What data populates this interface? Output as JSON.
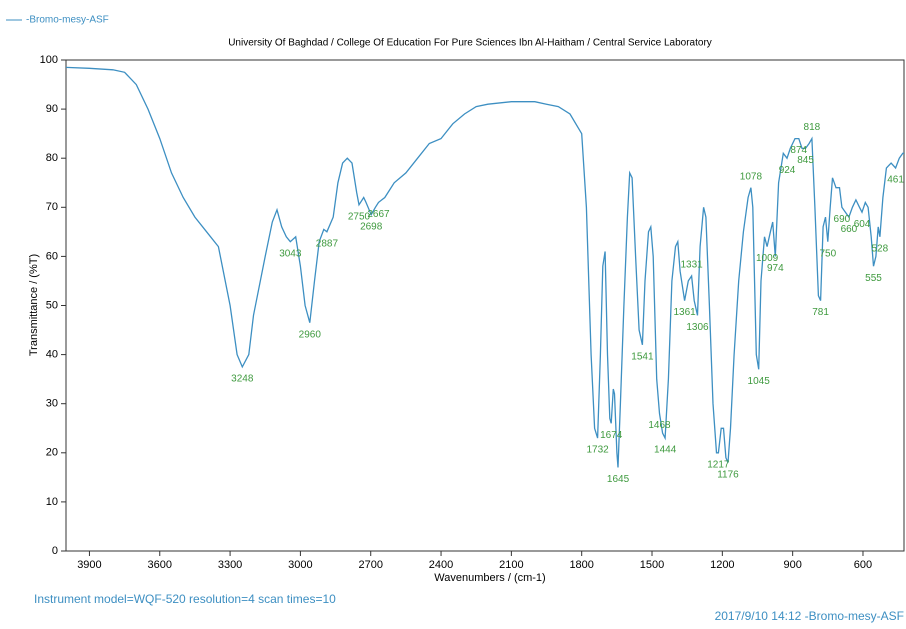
{
  "chart_data": {
    "type": "line",
    "title": "University Of Baghdad / College Of Education For Pure Sciences Ibn Al-Haitham / Central Service Laboratory",
    "xlabel": "Wavenumbers / (cm-1)",
    "ylabel": "Transmittance / (%T)",
    "footer_left": "Instrument model=WQF-520 resolution=4 scan times=10",
    "footer_right": "2017/9/10 14:12 -Bromo-mesy-ASF",
    "x": [
      4000,
      3900,
      3800,
      3750,
      3700,
      3650,
      3600,
      3550,
      3500,
      3450,
      3400,
      3350,
      3300,
      3270,
      3248,
      3220,
      3200,
      3150,
      3120,
      3100,
      3080,
      3060,
      3043,
      3020,
      3000,
      2980,
      2960,
      2940,
      2920,
      2900,
      2887,
      2860,
      2840,
      2820,
      2800,
      2780,
      2760,
      2750,
      2730,
      2720,
      2698,
      2680,
      2667,
      2640,
      2600,
      2550,
      2500,
      2450,
      2400,
      2350,
      2300,
      2250,
      2200,
      2100,
      2000,
      1950,
      1900,
      1850,
      1800,
      1780,
      1760,
      1745,
      1732,
      1720,
      1710,
      1700,
      1690,
      1680,
      1674,
      1665,
      1660,
      1650,
      1645,
      1635,
      1620,
      1605,
      1595,
      1585,
      1570,
      1555,
      1541,
      1530,
      1515,
      1505,
      1495,
      1480,
      1468,
      1455,
      1444,
      1430,
      1415,
      1400,
      1390,
      1380,
      1361,
      1345,
      1331,
      1320,
      1306,
      1295,
      1280,
      1270,
      1255,
      1240,
      1225,
      1217,
      1205,
      1195,
      1185,
      1176,
      1165,
      1150,
      1130,
      1110,
      1090,
      1078,
      1070,
      1055,
      1045,
      1035,
      1020,
      1009,
      995,
      985,
      974,
      960,
      940,
      924,
      910,
      890,
      874,
      860,
      845,
      830,
      818,
      805,
      790,
      781,
      770,
      760,
      750,
      740,
      730,
      715,
      700,
      690,
      675,
      660,
      645,
      630,
      615,
      604,
      590,
      578,
      565,
      555,
      545,
      535,
      528,
      515,
      500,
      480,
      461,
      445,
      430,
      425
    ],
    "series": [
      {
        "name": "-Bromo-mesy-ASF",
        "color": "#3d8fc2",
        "values": [
          98.5,
          98.3,
          98,
          97.5,
          95,
          90,
          84,
          77,
          72,
          68,
          65,
          62,
          50,
          40,
          37.5,
          40,
          48,
          60,
          67,
          69.5,
          66,
          64,
          63,
          64,
          58,
          50,
          46.5,
          55,
          63,
          65.5,
          65,
          68,
          75,
          79,
          80,
          79,
          73,
          70.5,
          72,
          71,
          68.5,
          70,
          71,
          72,
          75,
          77,
          80,
          83,
          84,
          87,
          89,
          90.5,
          91,
          91.5,
          91.5,
          91,
          90.5,
          89,
          85,
          70,
          40,
          25,
          23,
          40,
          58,
          61,
          40,
          27,
          26,
          33,
          32,
          20,
          17,
          30,
          50,
          68,
          77,
          76,
          60,
          45,
          42,
          55,
          65,
          66,
          60,
          35,
          28,
          24,
          23,
          35,
          55,
          62,
          63,
          57,
          51,
          55,
          56,
          51,
          48,
          62,
          70,
          68,
          50,
          30,
          20,
          20,
          25,
          25,
          19,
          18,
          25,
          40,
          55,
          65,
          72,
          74,
          70,
          40,
          37,
          55,
          64,
          62,
          65,
          67,
          60,
          75,
          81,
          80,
          82,
          84,
          84,
          82,
          82,
          83,
          84,
          70,
          52,
          51,
          66,
          68,
          63,
          70,
          76,
          74,
          74,
          70,
          69,
          68,
          70,
          71.5,
          70,
          69,
          71,
          70,
          64,
          58,
          60,
          66,
          64,
          72,
          78,
          79,
          78,
          80,
          81,
          81
        ]
      }
    ],
    "peaks": [
      3248,
      3043,
      2960,
      2887,
      2750,
      2698,
      2667,
      1732,
      1674,
      1645,
      1541,
      1468,
      1444,
      1361,
      1331,
      1306,
      1217,
      1176,
      1078,
      1045,
      1009,
      974,
      924,
      874,
      845,
      818,
      781,
      750,
      690,
      660,
      604,
      555,
      528,
      461
    ],
    "xlim": [
      4000,
      425
    ],
    "ylim": [
      0,
      100
    ],
    "xticks": [
      3900,
      3600,
      3300,
      3000,
      2700,
      2400,
      2100,
      1800,
      1500,
      1200,
      900,
      600
    ],
    "yticks": [
      0,
      10,
      20,
      30,
      40,
      50,
      60,
      70,
      80,
      90,
      100
    ],
    "label_color": "#3f9a3f"
  }
}
